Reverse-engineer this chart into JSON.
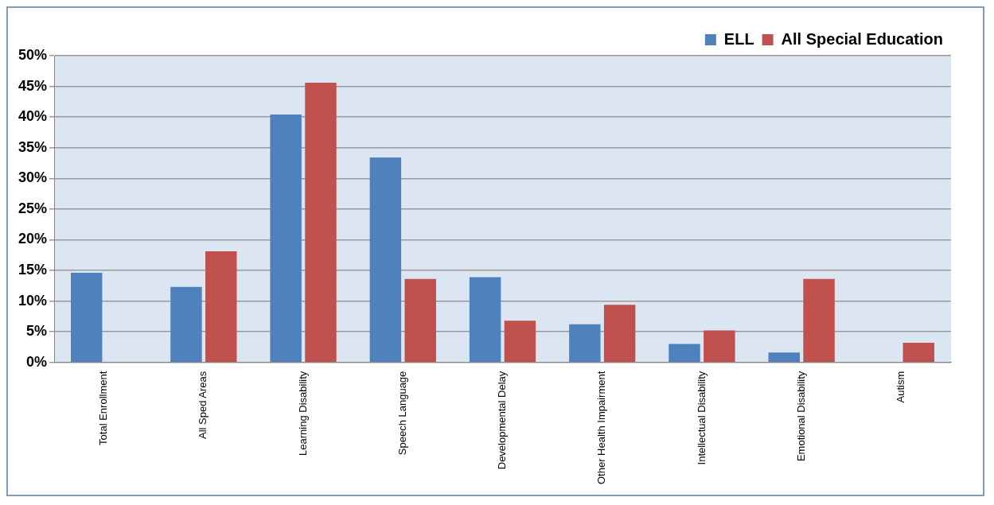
{
  "chart_data": {
    "type": "bar",
    "categories": [
      "Total Enrollment",
      "All Sped Areas",
      "Learning Disability",
      "Speech Language",
      "Developmental Delay",
      "Other Health Impairment",
      "Intellectual Disability",
      "Emotional Disability",
      "Autism"
    ],
    "series": [
      {
        "name": "ELL",
        "color": "#4f81bd",
        "values": [
          14.6,
          12.3,
          40.4,
          33.4,
          13.9,
          6.2,
          3.0,
          1.6,
          0
        ]
      },
      {
        "name": "All Special Education",
        "color": "#c0504d",
        "values": [
          null,
          18.1,
          45.6,
          13.6,
          6.8,
          9.4,
          5.2,
          13.6,
          3.2
        ]
      }
    ],
    "ylim": [
      0,
      50
    ],
    "yticks": [
      {
        "value": 0,
        "label": "0%"
      },
      {
        "value": 5,
        "label": "5%"
      },
      {
        "value": 10,
        "label": "10%"
      },
      {
        "value": 15,
        "label": "15%"
      },
      {
        "value": 20,
        "label": "20%"
      },
      {
        "value": 25,
        "label": "25%"
      },
      {
        "value": 30,
        "label": "30%"
      },
      {
        "value": 35,
        "label": "35%"
      },
      {
        "value": 40,
        "label": "40%"
      },
      {
        "value": 45,
        "label": "45%"
      },
      {
        "value": 50,
        "label": "50%"
      }
    ],
    "grid": "y",
    "legend": "top right"
  }
}
